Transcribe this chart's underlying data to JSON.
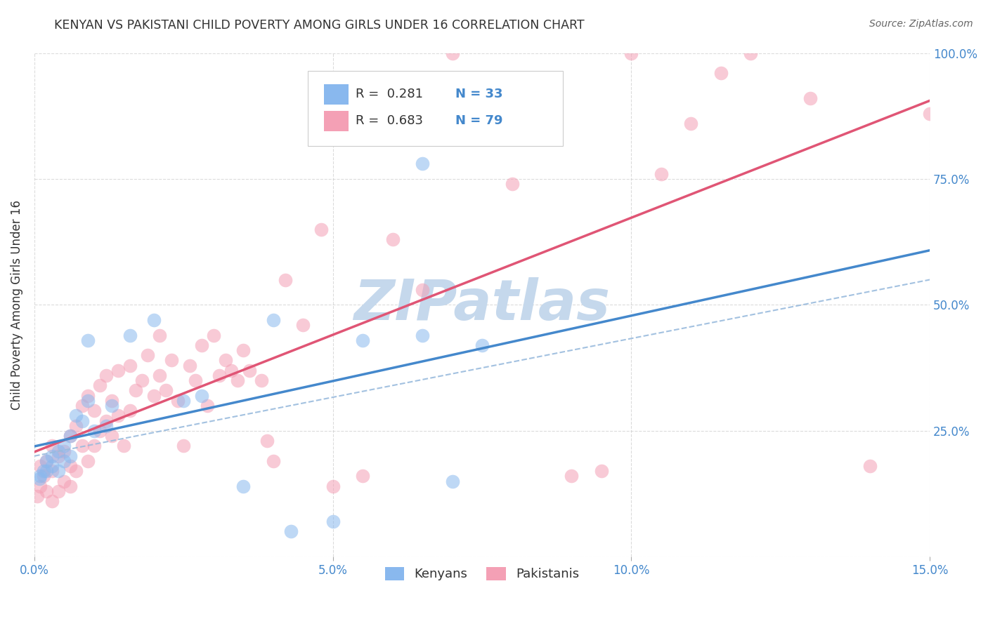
{
  "title": "KENYAN VS PAKISTANI CHILD POVERTY AMONG GIRLS UNDER 16 CORRELATION CHART",
  "source": "Source: ZipAtlas.com",
  "ylabel": "Child Poverty Among Girls Under 16",
  "xlim": [
    0.0,
    0.15
  ],
  "ylim": [
    0.0,
    1.0
  ],
  "xticks": [
    0.0,
    0.05,
    0.1,
    0.15
  ],
  "yticks": [
    0.0,
    0.25,
    0.5,
    0.75,
    1.0
  ],
  "xticklabels": [
    "0.0%",
    "5.0%",
    "10.0%",
    "15.0%"
  ],
  "yticklabels_right": [
    "",
    "25.0%",
    "50.0%",
    "75.0%",
    "100.0%"
  ],
  "kenyan_color": "#89B8EE",
  "pakistani_color": "#F4A0B5",
  "kenyan_line_color": "#4488CC",
  "pakistani_line_color": "#E05575",
  "dashed_line_color": "#99BBDD",
  "legend_label_kenyan": "Kenyans",
  "legend_label_pakistani": "Pakistanis",
  "watermark": "ZIPatlas",
  "watermark_color": "#C5D8EC",
  "background_color": "#FFFFFF",
  "tick_color": "#4488CC",
  "kenyan_x": [
    0.0008,
    0.001,
    0.0015,
    0.002,
    0.002,
    0.003,
    0.003,
    0.004,
    0.004,
    0.005,
    0.005,
    0.006,
    0.006,
    0.007,
    0.008,
    0.009,
    0.009,
    0.01,
    0.012,
    0.013,
    0.016,
    0.02,
    0.025,
    0.028,
    0.035,
    0.04,
    0.043,
    0.05,
    0.055,
    0.065,
    0.065,
    0.07,
    0.075
  ],
  "kenyan_y": [
    0.155,
    0.16,
    0.17,
    0.17,
    0.19,
    0.18,
    0.2,
    0.17,
    0.21,
    0.19,
    0.22,
    0.2,
    0.24,
    0.28,
    0.27,
    0.31,
    0.43,
    0.25,
    0.26,
    0.3,
    0.44,
    0.47,
    0.31,
    0.32,
    0.14,
    0.47,
    0.05,
    0.07,
    0.43,
    0.44,
    0.78,
    0.15,
    0.42
  ],
  "pakistani_x": [
    0.0005,
    0.001,
    0.001,
    0.0015,
    0.002,
    0.002,
    0.003,
    0.003,
    0.003,
    0.004,
    0.004,
    0.005,
    0.005,
    0.006,
    0.006,
    0.006,
    0.007,
    0.007,
    0.008,
    0.008,
    0.009,
    0.009,
    0.01,
    0.01,
    0.011,
    0.011,
    0.012,
    0.012,
    0.013,
    0.013,
    0.014,
    0.014,
    0.015,
    0.016,
    0.016,
    0.017,
    0.018,
    0.019,
    0.02,
    0.021,
    0.021,
    0.022,
    0.023,
    0.024,
    0.025,
    0.026,
    0.027,
    0.028,
    0.029,
    0.03,
    0.031,
    0.032,
    0.033,
    0.034,
    0.035,
    0.036,
    0.038,
    0.039,
    0.04,
    0.042,
    0.045,
    0.048,
    0.05,
    0.055,
    0.06,
    0.065,
    0.07,
    0.075,
    0.08,
    0.09,
    0.095,
    0.1,
    0.105,
    0.11,
    0.115,
    0.12,
    0.13,
    0.14,
    0.15
  ],
  "pakistani_y": [
    0.12,
    0.14,
    0.18,
    0.16,
    0.13,
    0.19,
    0.11,
    0.17,
    0.22,
    0.13,
    0.2,
    0.15,
    0.21,
    0.14,
    0.18,
    0.24,
    0.17,
    0.26,
    0.22,
    0.3,
    0.19,
    0.32,
    0.22,
    0.29,
    0.25,
    0.34,
    0.27,
    0.36,
    0.24,
    0.31,
    0.28,
    0.37,
    0.22,
    0.29,
    0.38,
    0.33,
    0.35,
    0.4,
    0.32,
    0.36,
    0.44,
    0.33,
    0.39,
    0.31,
    0.22,
    0.38,
    0.35,
    0.42,
    0.3,
    0.44,
    0.36,
    0.39,
    0.37,
    0.35,
    0.41,
    0.37,
    0.35,
    0.23,
    0.19,
    0.55,
    0.46,
    0.65,
    0.14,
    0.16,
    0.63,
    0.53,
    1.0,
    0.86,
    0.74,
    0.16,
    0.17,
    1.0,
    0.76,
    0.86,
    0.96,
    1.0,
    0.91,
    0.18,
    0.88
  ],
  "dot_size": 200
}
